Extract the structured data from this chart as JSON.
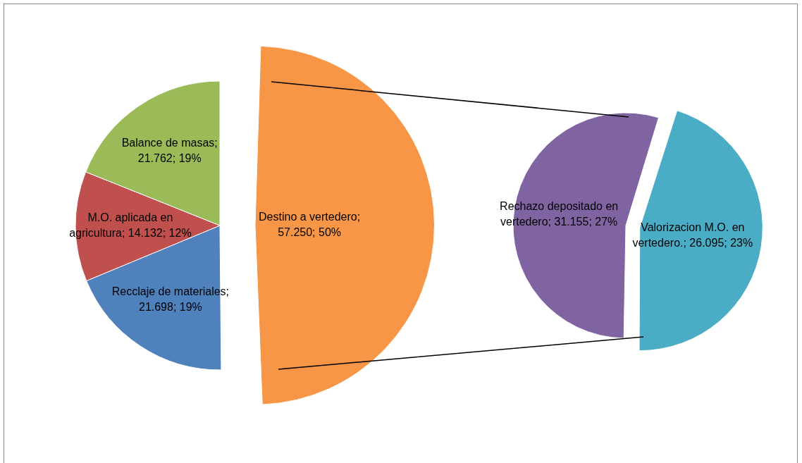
{
  "chart_data": [
    {
      "type": "pie",
      "categories": [
        "Destino a vertedero",
        "Recclaje de materiales",
        "M.O. aplicada en agricultura",
        "Balance de masas"
      ],
      "values": [
        57.25,
        21.698,
        14.132,
        21.762
      ],
      "colors": [
        "#f79646",
        "#4f81bd",
        "#c0504d",
        "#9bbb59"
      ],
      "value_labels": [
        "; 57.250; 50%",
        "; 21.698; 19%",
        "; 14.132; 12%",
        "; 21.762; 19%"
      ],
      "legend": false
    },
    {
      "type": "pie",
      "categories": [
        "Rechazo depositado en vertedero",
        "Valorizacion M.O. en vertedero."
      ],
      "values": [
        31.155,
        26.095
      ],
      "colors": [
        "#8064a2",
        "#4bacc6"
      ],
      "value_labels": [
        "; 31.155; 27%",
        "; 26.095; 23%"
      ],
      "legend": false
    }
  ]
}
